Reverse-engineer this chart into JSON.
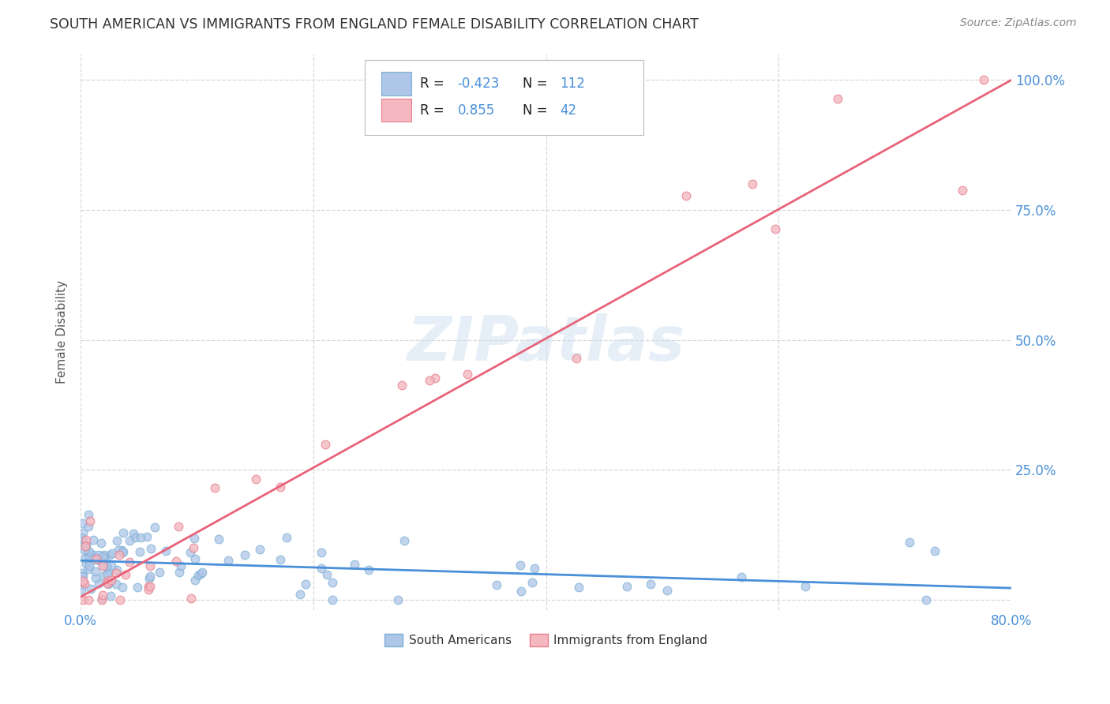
{
  "title": "SOUTH AMERICAN VS IMMIGRANTS FROM ENGLAND FEMALE DISABILITY CORRELATION CHART",
  "source": "Source: ZipAtlas.com",
  "ylabel": "Female Disability",
  "watermark": "ZIPatlas",
  "xmin": 0.0,
  "xmax": 0.8,
  "ymin": -0.02,
  "ymax": 1.05,
  "yticks": [
    0.0,
    0.25,
    0.5,
    0.75,
    1.0
  ],
  "ytick_labels": [
    "",
    "25.0%",
    "50.0%",
    "75.0%",
    "100.0%"
  ],
  "xticks": [
    0.0,
    0.2,
    0.4,
    0.6,
    0.8
  ],
  "xtick_labels": [
    "0.0%",
    "",
    "",
    "",
    "80.0%"
  ],
  "blue_scatter_color": "#aec6e8",
  "blue_scatter_edge": "#7bafd4",
  "pink_scatter_color": "#f4b8c1",
  "pink_scatter_edge": "#e87f8c",
  "blue_line_color": "#4a90d9",
  "pink_line_color": "#e8637a",
  "background_color": "#ffffff",
  "grid_color": "#d8d8d8",
  "title_color": "#333333",
  "axis_color": "#4a90d9",
  "blue_line_x0": 0.0,
  "blue_line_y0": 0.075,
  "blue_line_x1": 0.8,
  "blue_line_y1": 0.022,
  "pink_line_x0": 0.0,
  "pink_line_y0": 0.005,
  "pink_line_x1": 0.8,
  "pink_line_y1": 1.0,
  "seed_blue": 42,
  "seed_pink": 15
}
